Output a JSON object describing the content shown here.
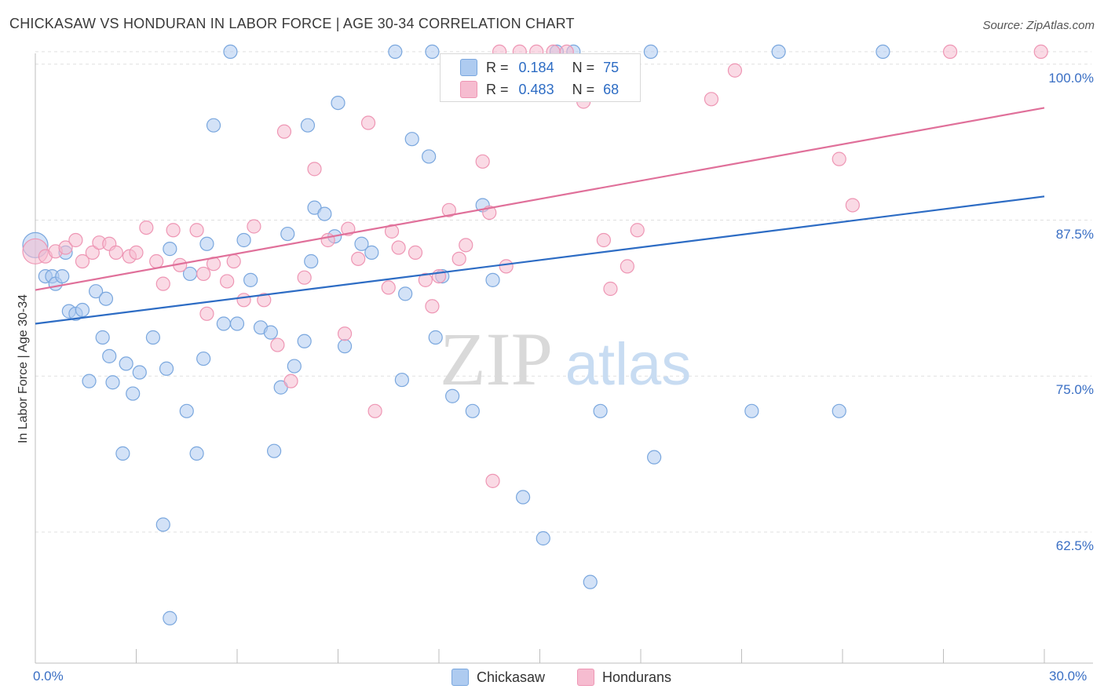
{
  "title": "CHICKASAW VS HONDURAN IN LABOR FORCE | AGE 30-34 CORRELATION CHART",
  "source": "Source: ZipAtlas.com",
  "watermark": {
    "zip": "ZIP",
    "atlas": "atlas"
  },
  "colors": {
    "chickasaw_fill": "#aecbf0",
    "chickasaw_stroke": "#7aa7de",
    "chickasaw_line": "#2d6cc4",
    "honduran_fill": "#f6bcd0",
    "honduran_stroke": "#ee96b4",
    "honduran_line": "#e0709a",
    "axis_label": "#3a6fc4"
  },
  "legend": {
    "rows": [
      {
        "r_label": "R =",
        "r_value": "0.184",
        "n_label": "N =",
        "n_value": "75"
      },
      {
        "r_label": "R =",
        "r_value": "0.483",
        "n_label": "N =",
        "n_value": "68"
      }
    ]
  },
  "bottom_legend": {
    "chickasaw": "Chickasaw",
    "hondurans": "Hondurans"
  },
  "chart_data": {
    "type": "scatter",
    "title": "CHICKASAW VS HONDURAN IN LABOR FORCE | AGE 30-34 CORRELATION CHART",
    "xlabel": "",
    "ylabel": "In Labor Force | Age 30-34",
    "xlim": [
      0,
      30
    ],
    "ylim": [
      52,
      102
    ],
    "x_tick_labels": [
      "0.0%",
      "30.0%"
    ],
    "y_ticks": [
      62.5,
      75.0,
      87.5,
      100.0
    ],
    "y_tick_labels": [
      "62.5%",
      "75.0%",
      "87.5%",
      "100.0%"
    ],
    "grid": true,
    "legend_position": "top-center",
    "series": [
      {
        "name": "Chickasaw",
        "r": 0.184,
        "n": 75,
        "trend": {
          "x": [
            0,
            30
          ],
          "y": [
            79.2,
            89.4
          ]
        },
        "points": [
          [
            0.0,
            85.5
          ],
          [
            0.3,
            83.0
          ],
          [
            0.5,
            83.0
          ],
          [
            0.6,
            82.4
          ],
          [
            0.8,
            83.0
          ],
          [
            1.0,
            80.2
          ],
          [
            1.2,
            80.0
          ],
          [
            1.4,
            80.3
          ],
          [
            1.8,
            81.8
          ],
          [
            2.0,
            78.1
          ],
          [
            2.2,
            76.6
          ],
          [
            1.6,
            74.6
          ],
          [
            2.3,
            74.5
          ],
          [
            2.7,
            76.0
          ],
          [
            2.9,
            73.6
          ],
          [
            3.1,
            75.3
          ],
          [
            3.5,
            78.1
          ],
          [
            2.6,
            68.8
          ],
          [
            3.9,
            75.6
          ],
          [
            4.0,
            85.2
          ],
          [
            4.5,
            72.2
          ],
          [
            4.6,
            83.2
          ],
          [
            5.0,
            76.4
          ],
          [
            4.8,
            68.8
          ],
          [
            5.1,
            85.6
          ],
          [
            5.3,
            95.1
          ],
          [
            5.6,
            79.2
          ],
          [
            5.8,
            101.0
          ],
          [
            6.0,
            79.2
          ],
          [
            6.2,
            85.9
          ],
          [
            6.4,
            82.7
          ],
          [
            6.7,
            78.9
          ],
          [
            7.0,
            78.5
          ],
          [
            7.1,
            69.0
          ],
          [
            7.3,
            74.1
          ],
          [
            7.5,
            86.4
          ],
          [
            7.7,
            75.8
          ],
          [
            8.1,
            95.1
          ],
          [
            8.2,
            84.2
          ],
          [
            8.3,
            88.5
          ],
          [
            8.0,
            77.8
          ],
          [
            9.0,
            96.9
          ],
          [
            8.6,
            88.0
          ],
          [
            8.9,
            86.2
          ],
          [
            9.2,
            77.4
          ],
          [
            9.7,
            85.6
          ],
          [
            10.0,
            84.9
          ],
          [
            10.7,
            101.0
          ],
          [
            10.9,
            74.7
          ],
          [
            11.0,
            81.6
          ],
          [
            11.2,
            94.0
          ],
          [
            11.8,
            101.0
          ],
          [
            11.7,
            92.6
          ],
          [
            11.9,
            78.1
          ],
          [
            12.1,
            83.0
          ],
          [
            12.4,
            73.4
          ],
          [
            13.0,
            72.2
          ],
          [
            13.3,
            88.7
          ],
          [
            13.6,
            82.7
          ],
          [
            14.5,
            65.3
          ],
          [
            15.1,
            62.0
          ],
          [
            15.5,
            101.0
          ],
          [
            16.0,
            101.0
          ],
          [
            16.5,
            58.5
          ],
          [
            16.8,
            72.2
          ],
          [
            18.3,
            101.0
          ],
          [
            18.4,
            68.5
          ],
          [
            21.3,
            72.2
          ],
          [
            22.1,
            101.0
          ],
          [
            23.9,
            72.2
          ],
          [
            25.2,
            101.0
          ],
          [
            0.9,
            84.9
          ],
          [
            3.8,
            63.1
          ],
          [
            4.0,
            55.6
          ],
          [
            2.1,
            81.2
          ]
        ]
      },
      {
        "name": "Hondurans",
        "r": 0.483,
        "n": 68,
        "trend": {
          "x": [
            0,
            30
          ],
          "y": [
            81.9,
            96.5
          ]
        },
        "points": [
          [
            0.0,
            85.0
          ],
          [
            0.3,
            84.6
          ],
          [
            0.6,
            85.0
          ],
          [
            0.9,
            85.3
          ],
          [
            1.2,
            85.9
          ],
          [
            1.4,
            84.2
          ],
          [
            1.7,
            84.9
          ],
          [
            1.9,
            85.7
          ],
          [
            2.2,
            85.6
          ],
          [
            2.4,
            84.9
          ],
          [
            2.8,
            84.6
          ],
          [
            3.0,
            84.9
          ],
          [
            3.3,
            86.9
          ],
          [
            3.6,
            84.2
          ],
          [
            3.8,
            82.4
          ],
          [
            4.1,
            86.7
          ],
          [
            4.3,
            83.9
          ],
          [
            4.8,
            86.7
          ],
          [
            5.0,
            83.2
          ],
          [
            5.1,
            80.0
          ],
          [
            5.3,
            84.0
          ],
          [
            5.7,
            82.6
          ],
          [
            5.9,
            84.2
          ],
          [
            6.2,
            81.1
          ],
          [
            6.5,
            87.0
          ],
          [
            6.8,
            81.1
          ],
          [
            7.2,
            77.5
          ],
          [
            7.4,
            94.6
          ],
          [
            7.6,
            74.6
          ],
          [
            8.0,
            82.9
          ],
          [
            8.3,
            91.6
          ],
          [
            8.7,
            85.9
          ],
          [
            9.2,
            78.4
          ],
          [
            9.3,
            86.8
          ],
          [
            9.6,
            84.4
          ],
          [
            9.9,
            95.3
          ],
          [
            10.1,
            72.2
          ],
          [
            10.6,
            86.6
          ],
          [
            10.8,
            85.3
          ],
          [
            11.3,
            84.9
          ],
          [
            11.6,
            82.7
          ],
          [
            11.8,
            80.6
          ],
          [
            12.0,
            83.0
          ],
          [
            12.3,
            88.3
          ],
          [
            12.6,
            84.4
          ],
          [
            13.0,
            98.7
          ],
          [
            13.3,
            92.2
          ],
          [
            13.5,
            88.1
          ],
          [
            13.6,
            66.6
          ],
          [
            14.0,
            83.8
          ],
          [
            14.4,
            101.0
          ],
          [
            14.9,
            101.0
          ],
          [
            15.4,
            101.0
          ],
          [
            15.8,
            101.0
          ],
          [
            16.3,
            97.0
          ],
          [
            16.9,
            85.9
          ],
          [
            17.1,
            82.0
          ],
          [
            17.6,
            83.8
          ],
          [
            17.9,
            86.7
          ],
          [
            20.1,
            97.2
          ],
          [
            20.8,
            99.5
          ],
          [
            23.9,
            92.4
          ],
          [
            24.3,
            88.7
          ],
          [
            27.2,
            101.0
          ],
          [
            29.9,
            101.0
          ],
          [
            13.8,
            101.0
          ],
          [
            10.5,
            82.1
          ],
          [
            12.8,
            85.5
          ]
        ]
      }
    ]
  }
}
